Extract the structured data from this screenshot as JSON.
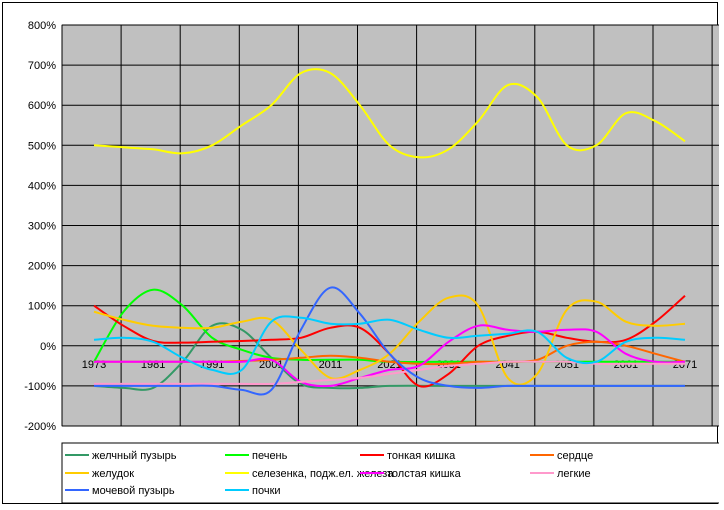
{
  "chart_data": {
    "type": "line",
    "title": "",
    "xlabel": "",
    "ylabel": "",
    "categories": [
      "1973",
      "1981",
      "1991",
      "2001",
      "2011",
      "2021",
      "2031",
      "2041",
      "2051",
      "2061",
      "2071"
    ],
    "y_ticks": [
      "800%",
      "700%",
      "600%",
      "500%",
      "400%",
      "300%",
      "200%",
      "100%",
      "0%",
      "-100%",
      "-200%"
    ],
    "ylim": [
      -200,
      800
    ],
    "y_unit": "%",
    "grid": true,
    "legend_position": "bottom",
    "plot_background": "#c0c0c0",
    "series": [
      {
        "name": "желчный пузырь",
        "color": "#339966",
        "x": [
          0,
          0.5,
          1,
          1.5,
          2,
          2.5,
          3,
          3.5,
          4,
          4.5,
          5,
          6,
          7,
          8,
          9,
          10
        ],
        "values": [
          -100,
          -105,
          -105,
          -40,
          50,
          40,
          -30,
          -95,
          -105,
          -105,
          -100,
          -100,
          -100,
          -100,
          -100,
          -100
        ]
      },
      {
        "name": "печень",
        "color": "#00ff00",
        "x": [
          0,
          0.5,
          1,
          1.5,
          2,
          2.5,
          3,
          3.5,
          4,
          4.5,
          5,
          6,
          7,
          8,
          9,
          10
        ],
        "values": [
          -40,
          85,
          140,
          100,
          20,
          -10,
          -30,
          -35,
          -35,
          -35,
          -40,
          -40,
          -40,
          -40,
          -40,
          -40
        ]
      },
      {
        "name": "тонкая кишка",
        "color": "#ff0000",
        "x": [
          0,
          0.5,
          1,
          1.5,
          2,
          2.5,
          3,
          3.5,
          4,
          4.5,
          5,
          5.5,
          6,
          6.5,
          7,
          7.5,
          8,
          8.5,
          9,
          9.5,
          10
        ],
        "values": [
          100,
          50,
          12,
          8,
          10,
          12,
          15,
          20,
          45,
          45,
          -20,
          -100,
          -70,
          0,
          25,
          35,
          20,
          10,
          15,
          60,
          125
        ]
      },
      {
        "name": "сердце",
        "color": "#ff6600",
        "x": [
          0,
          0.5,
          1,
          1.5,
          2,
          2.5,
          3,
          3.5,
          4,
          4.5,
          5,
          5.5,
          6,
          6.5,
          7,
          7.5,
          8,
          8.5,
          9,
          9.5,
          10
        ],
        "values": [
          -40,
          -40,
          -40,
          -40,
          -40,
          -38,
          -35,
          -30,
          -25,
          -30,
          -40,
          -45,
          -45,
          -40,
          -40,
          -35,
          0,
          10,
          0,
          -20,
          -40
        ]
      },
      {
        "name": "желудок",
        "color": "#ffcc00",
        "x": [
          0,
          0.5,
          1,
          1.5,
          2,
          2.5,
          3,
          3.5,
          4,
          4.5,
          5,
          5.5,
          6,
          6.5,
          7,
          7.5,
          8,
          8.5,
          9,
          9.5,
          10
        ],
        "values": [
          85,
          65,
          50,
          45,
          45,
          60,
          65,
          -10,
          -80,
          -60,
          -20,
          60,
          120,
          100,
          -80,
          -70,
          90,
          110,
          60,
          50,
          55
        ]
      },
      {
        "name": "селезенка, подж.ел. железа",
        "color": "#ffff00",
        "x": [
          0,
          0.5,
          1,
          1.5,
          2,
          2.5,
          3,
          3.5,
          4,
          4.5,
          5,
          5.5,
          6,
          6.5,
          7,
          7.5,
          8,
          8.5,
          9,
          9.5,
          10
        ],
        "values": [
          500,
          495,
          490,
          480,
          500,
          550,
          600,
          680,
          680,
          600,
          500,
          470,
          490,
          560,
          650,
          620,
          500,
          500,
          580,
          560,
          510
        ]
      },
      {
        "name": "толстая кишка",
        "color": "#ff00ff",
        "x": [
          0,
          0.5,
          1,
          1.5,
          2,
          2.5,
          3,
          3.5,
          4,
          4.5,
          5,
          5.5,
          6,
          6.5,
          7,
          7.5,
          8,
          8.5,
          9,
          9.5,
          10
        ],
        "values": [
          -40,
          -40,
          -40,
          -40,
          -40,
          -40,
          -35,
          -90,
          -100,
          -80,
          -60,
          -50,
          10,
          50,
          40,
          35,
          40,
          35,
          -20,
          -40,
          -40
        ]
      },
      {
        "name": "легкие",
        "color": "#ff99cc",
        "x": [
          0,
          0.5,
          1,
          1.5,
          2,
          2.5,
          3,
          3.5,
          4,
          4.5,
          5,
          5.5,
          6,
          6.5,
          7,
          7.5,
          8,
          8.5,
          9,
          9.5,
          10
        ],
        "values": [
          -95,
          -95,
          -95,
          -95,
          -95,
          -95,
          -95,
          -90,
          -85,
          -80,
          -70,
          -60,
          -50,
          -45,
          -40,
          -40,
          -40,
          -45,
          -45,
          -45,
          -45
        ]
      },
      {
        "name": "мочевой пузырь",
        "color": "#3366ff",
        "x": [
          0,
          0.5,
          1,
          1.5,
          2,
          2.5,
          3,
          3.5,
          4,
          4.5,
          5,
          5.5,
          6,
          6.5,
          7,
          7.5,
          8,
          8.5,
          9,
          9.5,
          10
        ],
        "values": [
          -100,
          -100,
          -100,
          -100,
          -100,
          -110,
          -110,
          40,
          145,
          80,
          -20,
          -80,
          -100,
          -105,
          -100,
          -100,
          -100,
          -100,
          -100,
          -100,
          -100
        ]
      },
      {
        "name": "почки",
        "color": "#00ccff",
        "x": [
          0,
          0.5,
          1,
          1.5,
          2,
          2.5,
          3,
          3.5,
          4,
          4.5,
          5,
          5.5,
          6,
          6.5,
          7,
          7.5,
          8,
          8.5,
          9,
          9.5,
          10
        ],
        "values": [
          15,
          20,
          10,
          -30,
          -60,
          -60,
          60,
          70,
          55,
          55,
          65,
          40,
          20,
          25,
          30,
          35,
          -30,
          -40,
          10,
          20,
          15
        ]
      }
    ]
  }
}
